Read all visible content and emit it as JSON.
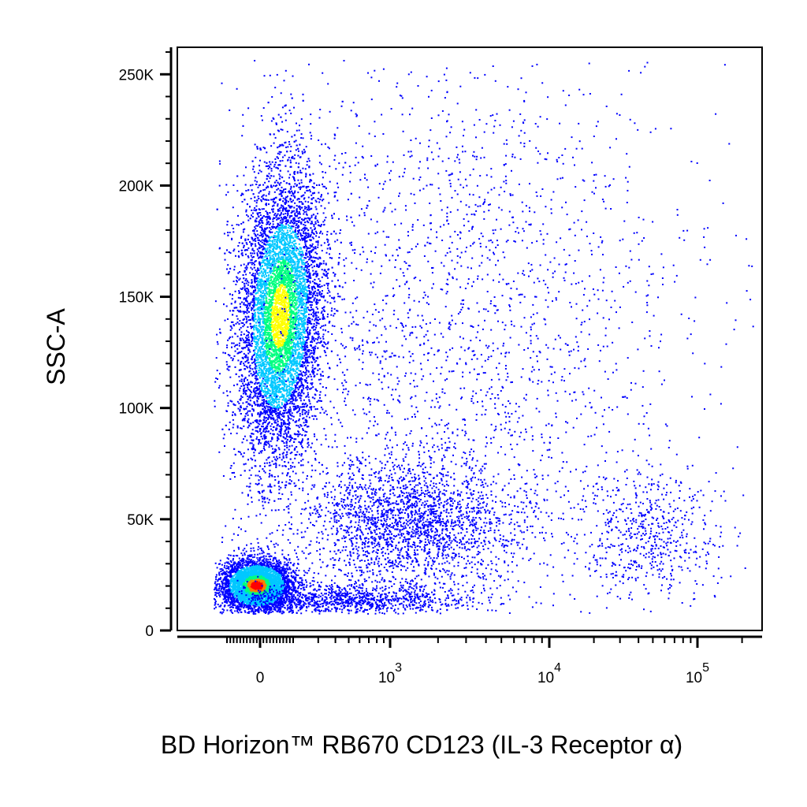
{
  "chart_data": {
    "type": "scatter",
    "subtype": "flow-cytometry-density-plot",
    "xlabel": "BD Horizon™ RB670 CD123 (IL-3 Receptor α)",
    "ylabel": "SSC-A",
    "x_scale": "biexponential (linear near 0, log above ~10^3)",
    "y_scale": "linear",
    "ylim": [
      0,
      262144
    ],
    "xlim": [
      -300,
      250000
    ],
    "y_ticks": [
      {
        "value": 0,
        "label": "0"
      },
      {
        "value": 50000,
        "label": "50K"
      },
      {
        "value": 100000,
        "label": "100K"
      },
      {
        "value": 150000,
        "label": "150K"
      },
      {
        "value": 200000,
        "label": "200K"
      },
      {
        "value": 250000,
        "label": "250K"
      }
    ],
    "x_ticks": [
      {
        "value": 0,
        "base": "0",
        "exp": ""
      },
      {
        "value": 1000,
        "base": "10",
        "exp": "3"
      },
      {
        "value": 10000,
        "base": "10",
        "exp": "4"
      },
      {
        "value": 100000,
        "base": "10",
        "exp": "5"
      }
    ],
    "color_scale": [
      "#0000ff",
      "#00c8ff",
      "#00ff80",
      "#ffff00",
      "#ff8000",
      "#ff0000"
    ],
    "populations": [
      {
        "x_center": 20,
        "y_center": 20000,
        "density": "highest (red)",
        "note": "CD123-negative, low SSC"
      },
      {
        "x_center": 150,
        "y_center": 135000,
        "density": "high (green-yellow)",
        "note": "CD123-negative, high SSC"
      },
      {
        "x_center": 1500,
        "y_center": 48000,
        "density": "medium (blue)",
        "note": "CD123-dim"
      },
      {
        "x_center": 40000,
        "y_center": 42000,
        "density": "low (blue)",
        "note": "CD123-bright"
      }
    ],
    "grid": false,
    "legend": "none"
  }
}
